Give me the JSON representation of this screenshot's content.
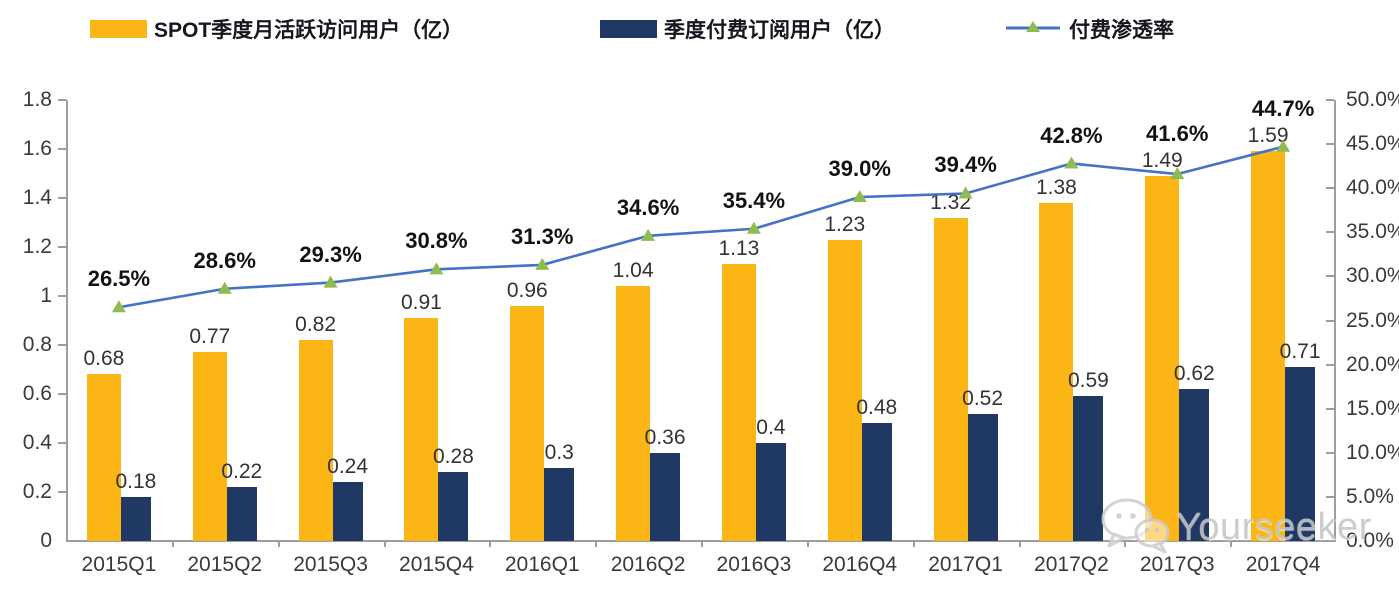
{
  "legend": {
    "position": "top",
    "items": [
      {
        "label": "SPOT季度月活跃访问用户（亿）",
        "swatch": "bar",
        "color": "#FBB615"
      },
      {
        "label": "季度付费订阅用户（亿）",
        "swatch": "bar",
        "color": "#1F3864"
      },
      {
        "label": "付费渗透率",
        "swatch": "line-triangle-marker",
        "color": "#4472C4",
        "marker_color": "#8FBC4F"
      }
    ]
  },
  "watermark": {
    "text": "Yourseeker",
    "icon": "wechat-icon",
    "color": "#C6C6C6"
  },
  "chart_data": {
    "type": "bar",
    "subtype": "combo-bar-line-dual-axis",
    "categories": [
      "2015Q1",
      "2015Q2",
      "2015Q3",
      "2015Q4",
      "2016Q1",
      "2016Q2",
      "2016Q3",
      "2016Q4",
      "2017Q1",
      "2017Q2",
      "2017Q3",
      "2017Q4"
    ],
    "series": [
      {
        "name": "SPOT季度月活跃访问用户（亿）",
        "type": "bar",
        "axis": "left",
        "color": "#FBB615",
        "values": [
          0.68,
          0.77,
          0.82,
          0.91,
          0.96,
          1.04,
          1.13,
          1.23,
          1.32,
          1.38,
          1.49,
          1.59
        ],
        "labels": [
          "0.68",
          "0.77",
          "0.82",
          "0.91",
          "0.96",
          "1.04",
          "1.13",
          "1.23",
          "1.32",
          "1.38",
          "1.49",
          "1.59"
        ]
      },
      {
        "name": "季度付费订阅用户（亿）",
        "type": "bar",
        "axis": "left",
        "color": "#1F3864",
        "values": [
          0.18,
          0.22,
          0.24,
          0.28,
          0.3,
          0.36,
          0.4,
          0.48,
          0.52,
          0.59,
          0.62,
          0.71
        ],
        "labels": [
          "0.18",
          "0.22",
          "0.24",
          "0.28",
          "0.3",
          "0.36",
          "0.4",
          "0.48",
          "0.52",
          "0.59",
          "0.62",
          "0.71"
        ]
      },
      {
        "name": "付费渗透率",
        "type": "line",
        "axis": "right",
        "color": "#4472C4",
        "marker": "triangle",
        "marker_color": "#8FBC4F",
        "values": [
          26.5,
          28.6,
          29.3,
          30.8,
          31.3,
          34.6,
          35.4,
          39.0,
          39.4,
          42.8,
          41.6,
          44.7
        ],
        "labels": [
          "26.5%",
          "28.6%",
          "29.3%",
          "30.8%",
          "31.3%",
          "34.6%",
          "35.4%",
          "39.0%",
          "39.4%",
          "42.8%",
          "41.6%",
          "44.7%"
        ]
      }
    ],
    "left_axis": {
      "min": 0,
      "max": 1.8,
      "step": 0.2,
      "ticks": [
        "0",
        "0.2",
        "0.4",
        "0.6",
        "0.8",
        "1",
        "1.2",
        "1.4",
        "1.6",
        "1.8"
      ]
    },
    "right_axis": {
      "min": 0,
      "max": 50,
      "step": 5,
      "ticks": [
        "0.0%",
        "5.0%",
        "10.0%",
        "15.0%",
        "20.0%",
        "25.0%",
        "30.0%",
        "35.0%",
        "40.0%",
        "45.0%",
        "50.0%"
      ]
    },
    "grid": false,
    "legend_position": "top"
  }
}
